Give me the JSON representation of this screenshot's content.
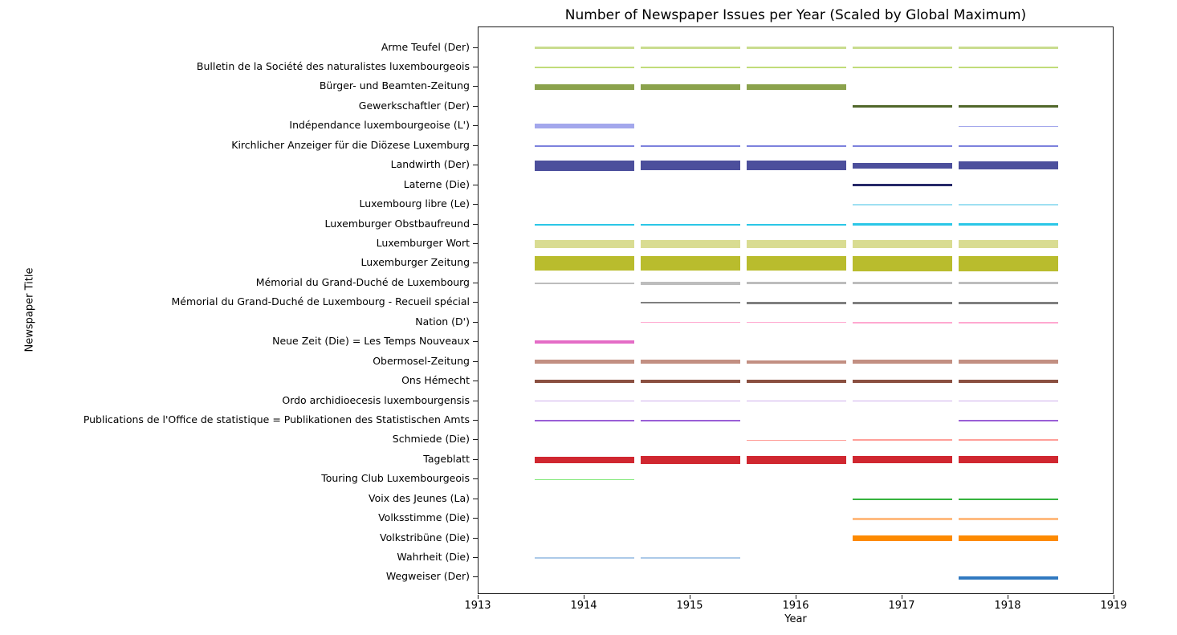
{
  "chart_data": {
    "type": "line",
    "variant": "horizontal-year-segments (Gantt-style hlines, thickness = scaled issue count)",
    "title": "Number of Newspaper Issues per Year (Scaled by Global Maximum)",
    "xlabel": "Year",
    "ylabel": "Newspaper Title",
    "xlim": [
      1913,
      1919
    ],
    "x_ticks": [
      "1913",
      "1914",
      "1915",
      "1916",
      "1917",
      "1918",
      "1919"
    ],
    "segment_half_span_years": 0.47,
    "grid": false,
    "legend": "none",
    "note": "Each row is a newspaper; a colored segment centered on a year tick means issues exist for that year; line thickness is proportional to issues per year scaled by the global maximum.",
    "series": [
      {
        "name": "Arme Teufel (Der)",
        "color": "#c9dc8e",
        "segments": [
          {
            "year": 1914,
            "linewidth": 2.5
          },
          {
            "year": 1915,
            "linewidth": 2.5
          },
          {
            "year": 1916,
            "linewidth": 2.5
          },
          {
            "year": 1917,
            "linewidth": 2.8
          },
          {
            "year": 1918,
            "linewidth": 2.8
          }
        ]
      },
      {
        "name": "Bulletin de la Société des naturalistes luxembourgeois",
        "color": "#c1dc79",
        "segments": [
          {
            "year": 1914,
            "linewidth": 1.6
          },
          {
            "year": 1915,
            "linewidth": 1.6
          },
          {
            "year": 1916,
            "linewidth": 1.6
          },
          {
            "year": 1917,
            "linewidth": 1.6
          },
          {
            "year": 1918,
            "linewidth": 1.6
          }
        ]
      },
      {
        "name": "Bürger- und Beamten-Zeitung",
        "color": "#8ba24c",
        "segments": [
          {
            "year": 1914,
            "linewidth": 7
          },
          {
            "year": 1915,
            "linewidth": 7
          },
          {
            "year": 1916,
            "linewidth": 6.8
          }
        ]
      },
      {
        "name": "Gewerkschaftler (Der)",
        "color": "#51672a",
        "segments": [
          {
            "year": 1917,
            "linewidth": 3.2
          },
          {
            "year": 1918,
            "linewidth": 3.2
          }
        ]
      },
      {
        "name": "Indépendance luxembourgeoise (L')",
        "color": "#a3a7ec",
        "segments": [
          {
            "year": 1914,
            "linewidth": 6
          },
          {
            "year": 1918,
            "linewidth": 1.6
          }
        ]
      },
      {
        "name": "Kirchlicher Anzeiger für die Diözese Luxemburg",
        "color": "#7d82dd",
        "segments": [
          {
            "year": 1914,
            "linewidth": 1.8
          },
          {
            "year": 1915,
            "linewidth": 1.8
          },
          {
            "year": 1916,
            "linewidth": 1.8
          },
          {
            "year": 1917,
            "linewidth": 1.8
          },
          {
            "year": 1918,
            "linewidth": 1.8
          }
        ]
      },
      {
        "name": "Landwirth (Der)",
        "color": "#4c4f9c",
        "segments": [
          {
            "year": 1914,
            "linewidth": 12.5
          },
          {
            "year": 1915,
            "linewidth": 12
          },
          {
            "year": 1916,
            "linewidth": 12
          },
          {
            "year": 1917,
            "linewidth": 7.5
          },
          {
            "year": 1918,
            "linewidth": 10
          }
        ]
      },
      {
        "name": "Laterne (Die)",
        "color": "#262868",
        "segments": [
          {
            "year": 1917,
            "linewidth": 3
          }
        ]
      },
      {
        "name": "Luxembourg libre (Le)",
        "color": "#9fe0f2",
        "segments": [
          {
            "year": 1917,
            "linewidth": 1.4
          },
          {
            "year": 1918,
            "linewidth": 1.4
          }
        ]
      },
      {
        "name": "Luxemburger Obstbaufreund",
        "color": "#2bc7e7",
        "segments": [
          {
            "year": 1914,
            "linewidth": 2.2
          },
          {
            "year": 1915,
            "linewidth": 2.2
          },
          {
            "year": 1916,
            "linewidth": 2.2
          },
          {
            "year": 1917,
            "linewidth": 2.4
          },
          {
            "year": 1918,
            "linewidth": 2.4
          }
        ]
      },
      {
        "name": "Luxemburger Wort",
        "color": "#d9dc92",
        "segments": [
          {
            "year": 1914,
            "linewidth": 10
          },
          {
            "year": 1915,
            "linewidth": 10
          },
          {
            "year": 1916,
            "linewidth": 10
          },
          {
            "year": 1917,
            "linewidth": 10
          },
          {
            "year": 1918,
            "linewidth": 10
          }
        ]
      },
      {
        "name": "Luxemburger Zeitung",
        "color": "#b9bc2d",
        "segments": [
          {
            "year": 1914,
            "linewidth": 18
          },
          {
            "year": 1915,
            "linewidth": 18
          },
          {
            "year": 1916,
            "linewidth": 18
          },
          {
            "year": 1917,
            "linewidth": 18.5
          },
          {
            "year": 1918,
            "linewidth": 18.5
          }
        ]
      },
      {
        "name": "Mémorial du Grand-Duché de Luxembourg",
        "color": "#bdbdbd",
        "segments": [
          {
            "year": 1914,
            "linewidth": 2.6
          },
          {
            "year": 1915,
            "linewidth": 3.6
          },
          {
            "year": 1916,
            "linewidth": 3.2
          },
          {
            "year": 1917,
            "linewidth": 3.2
          },
          {
            "year": 1918,
            "linewidth": 3.2
          }
        ]
      },
      {
        "name": "Mémorial du Grand-Duché de Luxembourg  - Recueil spécial",
        "color": "#7f7f7f",
        "segments": [
          {
            "year": 1915,
            "linewidth": 2
          },
          {
            "year": 1916,
            "linewidth": 2.6
          },
          {
            "year": 1917,
            "linewidth": 2.6
          },
          {
            "year": 1918,
            "linewidth": 2.6
          }
        ]
      },
      {
        "name": "Nation (D')",
        "color": "#ffa8d0",
        "segments": [
          {
            "year": 1915,
            "linewidth": 1.3
          },
          {
            "year": 1916,
            "linewidth": 1.3
          },
          {
            "year": 1917,
            "linewidth": 1.6
          },
          {
            "year": 1918,
            "linewidth": 2.2
          }
        ]
      },
      {
        "name": "Neue Zeit (Die) = Les Temps Nouveaux",
        "color": "#e46cc6",
        "segments": [
          {
            "year": 1914,
            "linewidth": 4
          }
        ]
      },
      {
        "name": "Obermosel-Zeitung",
        "color": "#c28f82",
        "segments": [
          {
            "year": 1914,
            "linewidth": 5
          },
          {
            "year": 1915,
            "linewidth": 4.6
          },
          {
            "year": 1916,
            "linewidth": 4.2
          },
          {
            "year": 1917,
            "linewidth": 4.8
          },
          {
            "year": 1918,
            "linewidth": 5.2
          }
        ]
      },
      {
        "name": "Ons Hémecht",
        "color": "#8a4f40",
        "segments": [
          {
            "year": 1914,
            "linewidth": 3.4
          },
          {
            "year": 1915,
            "linewidth": 3.4
          },
          {
            "year": 1916,
            "linewidth": 3.4
          },
          {
            "year": 1917,
            "linewidth": 3.4
          },
          {
            "year": 1918,
            "linewidth": 3.4
          }
        ]
      },
      {
        "name": "Ordo archidioecesis luxembourgensis",
        "color": "#cfaeec",
        "segments": [
          {
            "year": 1914,
            "linewidth": 1.5
          },
          {
            "year": 1915,
            "linewidth": 1.5
          },
          {
            "year": 1916,
            "linewidth": 1.5
          },
          {
            "year": 1917,
            "linewidth": 1.5
          },
          {
            "year": 1918,
            "linewidth": 1.5
          }
        ]
      },
      {
        "name": "Publications de l'Office de statistique = Publikationen des Statistischen Amts",
        "color": "#9a5fd6",
        "segments": [
          {
            "year": 1914,
            "linewidth": 2.4
          },
          {
            "year": 1915,
            "linewidth": 2.4
          },
          {
            "year": 1918,
            "linewidth": 2.4
          }
        ]
      },
      {
        "name": "Schmiede (Die)",
        "color": "#ff9e98",
        "segments": [
          {
            "year": 1916,
            "linewidth": 1.4
          },
          {
            "year": 1917,
            "linewidth": 2.2
          },
          {
            "year": 1918,
            "linewidth": 2.2
          }
        ]
      },
      {
        "name": "Tageblatt",
        "color": "#d02730",
        "segments": [
          {
            "year": 1914,
            "linewidth": 8
          },
          {
            "year": 1915,
            "linewidth": 10
          },
          {
            "year": 1916,
            "linewidth": 9.5
          },
          {
            "year": 1917,
            "linewidth": 9
          },
          {
            "year": 1918,
            "linewidth": 9
          }
        ]
      },
      {
        "name": "Touring Club Luxembourgeois",
        "color": "#86e97e",
        "segments": [
          {
            "year": 1914,
            "linewidth": 1.5
          }
        ]
      },
      {
        "name": "Voix des Jeunes (La)",
        "color": "#35b33e",
        "segments": [
          {
            "year": 1917,
            "linewidth": 2.2
          },
          {
            "year": 1918,
            "linewidth": 2.2
          }
        ]
      },
      {
        "name": "Volksstimme (Die)",
        "color": "#ffbb80",
        "segments": [
          {
            "year": 1917,
            "linewidth": 3
          },
          {
            "year": 1918,
            "linewidth": 3
          }
        ]
      },
      {
        "name": "Volkstribüne (Die)",
        "color": "#fd8a01",
        "segments": [
          {
            "year": 1917,
            "linewidth": 6.5
          },
          {
            "year": 1918,
            "linewidth": 6.5
          }
        ]
      },
      {
        "name": "Wahrheit (Die)",
        "color": "#accae8",
        "segments": [
          {
            "year": 1914,
            "linewidth": 1.8
          },
          {
            "year": 1915,
            "linewidth": 1.8
          }
        ]
      },
      {
        "name": "Wegweiser (Der)",
        "color": "#3079c0",
        "segments": [
          {
            "year": 1918,
            "linewidth": 4
          }
        ]
      }
    ]
  }
}
